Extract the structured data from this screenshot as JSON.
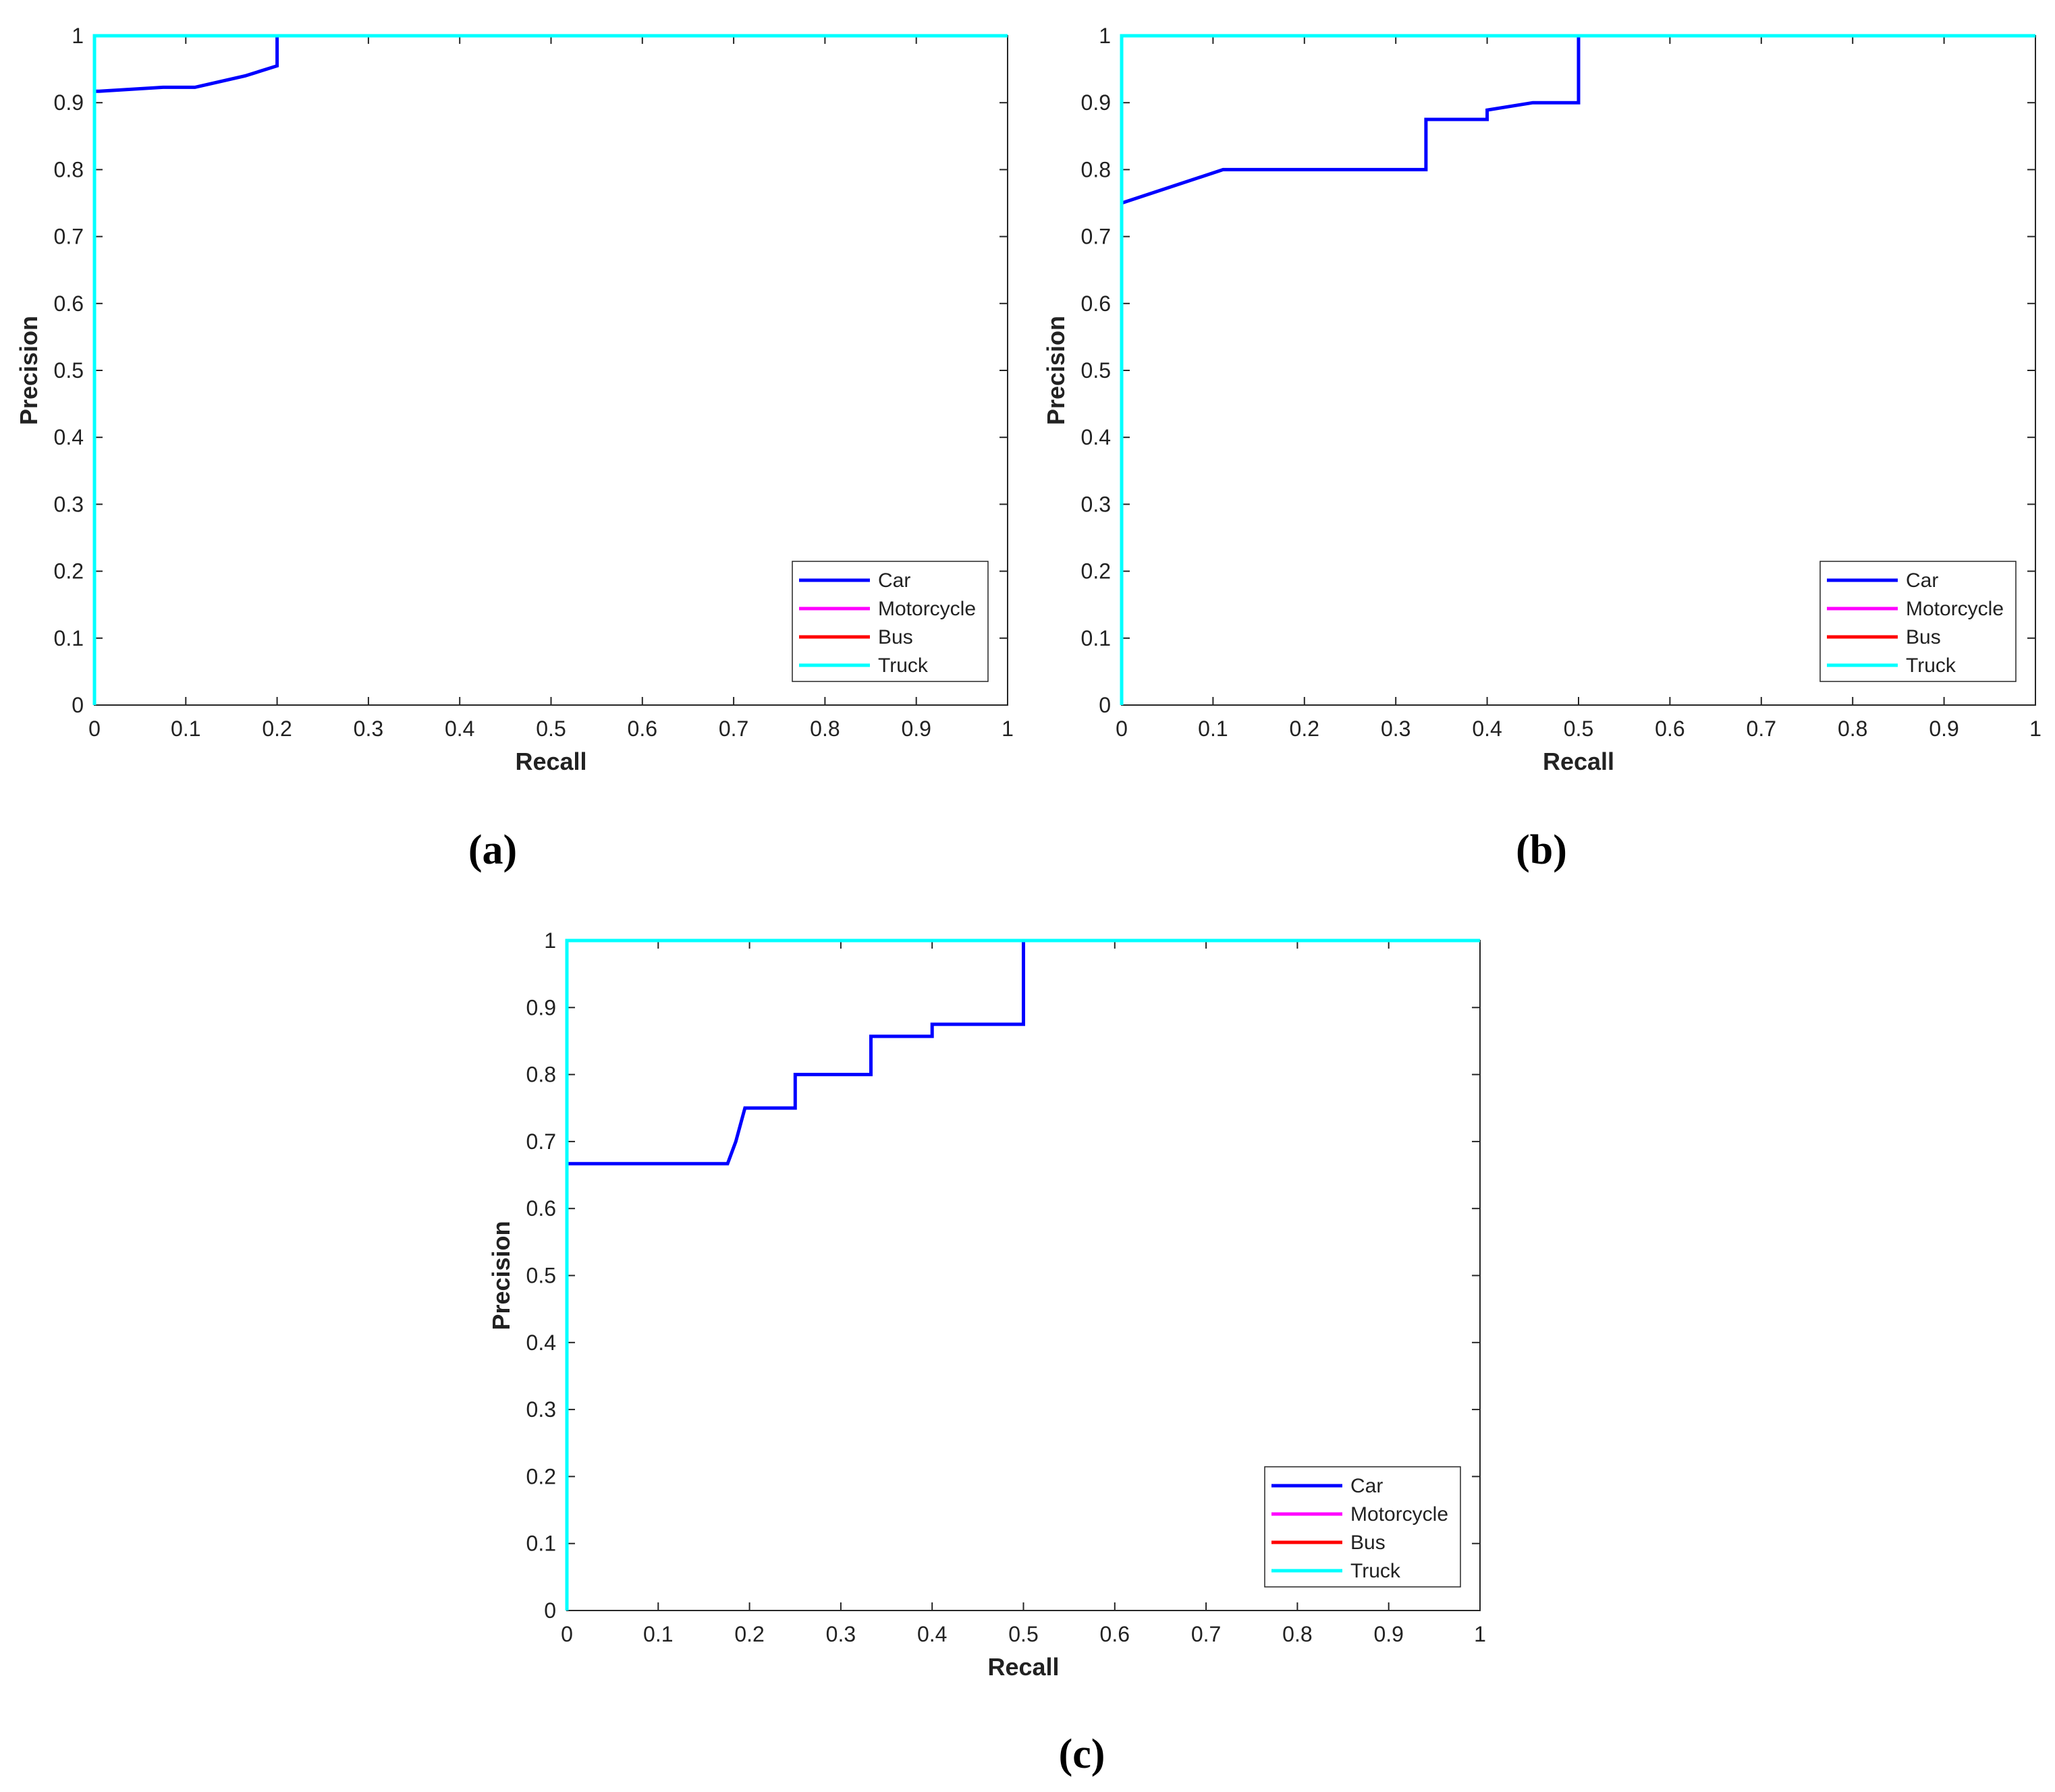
{
  "chart_data": [
    {
      "type": "line",
      "caption": "(a)",
      "xlabel": "Recall",
      "ylabel": "Precision",
      "xlim": [
        0,
        1
      ],
      "ylim": [
        0,
        1
      ],
      "grid": false,
      "legend_position": "bottom-right",
      "xticks": [
        "0",
        "0.1",
        "0.2",
        "0.3",
        "0.4",
        "0.5",
        "0.6",
        "0.7",
        "0.8",
        "0.9",
        "1"
      ],
      "yticks": [
        "0",
        "0.1",
        "0.2",
        "0.3",
        "0.4",
        "0.5",
        "0.6",
        "0.7",
        "0.8",
        "0.9",
        "1"
      ],
      "series": [
        {
          "name": "Car",
          "color": "#0000ff",
          "x": [
            0,
            0.005,
            0.075,
            0.11,
            0.165,
            0.2,
            0.2
          ],
          "y": [
            0.917,
            0.917,
            0.923,
            0.923,
            0.94,
            0.955,
            1.0
          ]
        },
        {
          "name": "Motorcycle",
          "color": "#ff00ff",
          "x": [
            0,
            0,
            1
          ],
          "y": [
            0,
            1,
            1
          ]
        },
        {
          "name": "Bus",
          "color": "#ff0000",
          "x": [
            0,
            0,
            1
          ],
          "y": [
            0,
            1,
            1
          ]
        },
        {
          "name": "Truck",
          "color": "#00ffff",
          "x": [
            0,
            0,
            1
          ],
          "y": [
            0,
            1,
            1
          ]
        }
      ]
    },
    {
      "type": "line",
      "caption": "(b)",
      "xlabel": "Recall",
      "ylabel": "Precision",
      "xlim": [
        0,
        1
      ],
      "ylim": [
        0,
        1
      ],
      "grid": false,
      "legend_position": "bottom-right",
      "xticks": [
        "0",
        "0.1",
        "0.2",
        "0.3",
        "0.4",
        "0.5",
        "0.6",
        "0.7",
        "0.8",
        "0.9",
        "1"
      ],
      "yticks": [
        "0",
        "0.1",
        "0.2",
        "0.3",
        "0.4",
        "0.5",
        "0.6",
        "0.7",
        "0.8",
        "0.9",
        "1"
      ],
      "series": [
        {
          "name": "Car",
          "color": "#0000ff",
          "x": [
            0,
            0.111,
            0.333,
            0.333,
            0.4,
            0.4,
            0.45,
            0.5,
            0.5
          ],
          "y": [
            0.75,
            0.8,
            0.8,
            0.875,
            0.875,
            0.889,
            0.9,
            0.9,
            1.0
          ]
        },
        {
          "name": "Motorcycle",
          "color": "#ff00ff",
          "x": [
            0,
            0,
            1
          ],
          "y": [
            0,
            1,
            1
          ]
        },
        {
          "name": "Bus",
          "color": "#ff0000",
          "x": [
            0,
            0,
            1
          ],
          "y": [
            0,
            1,
            1
          ]
        },
        {
          "name": "Truck",
          "color": "#00ffff",
          "x": [
            0,
            0,
            1
          ],
          "y": [
            0,
            1,
            1
          ]
        }
      ]
    },
    {
      "type": "line",
      "caption": "(c)",
      "xlabel": "Recall",
      "ylabel": "Precision",
      "xlim": [
        0,
        1
      ],
      "ylim": [
        0,
        1
      ],
      "grid": false,
      "legend_position": "bottom-right",
      "xticks": [
        "0",
        "0.1",
        "0.2",
        "0.3",
        "0.4",
        "0.5",
        "0.6",
        "0.7",
        "0.8",
        "0.9",
        "1"
      ],
      "yticks": [
        "0",
        "0.1",
        "0.2",
        "0.3",
        "0.4",
        "0.5",
        "0.6",
        "0.7",
        "0.8",
        "0.9",
        "1"
      ],
      "series": [
        {
          "name": "Car",
          "color": "#0000ff",
          "x": [
            0,
            0.176,
            0.185,
            0.195,
            0.25,
            0.25,
            0.333,
            0.333,
            0.4,
            0.4,
            0.5,
            0.5
          ],
          "y": [
            0.667,
            0.667,
            0.7,
            0.75,
            0.75,
            0.8,
            0.8,
            0.857,
            0.857,
            0.875,
            0.875,
            1.0
          ]
        },
        {
          "name": "Motorcycle",
          "color": "#ff00ff",
          "x": [
            0,
            0,
            1
          ],
          "y": [
            0,
            1,
            1
          ]
        },
        {
          "name": "Bus",
          "color": "#ff0000",
          "x": [
            0,
            0,
            1
          ],
          "y": [
            0,
            1,
            1
          ]
        },
        {
          "name": "Truck",
          "color": "#00ffff",
          "x": [
            0,
            0,
            1
          ],
          "y": [
            0,
            1,
            1
          ]
        }
      ]
    }
  ]
}
